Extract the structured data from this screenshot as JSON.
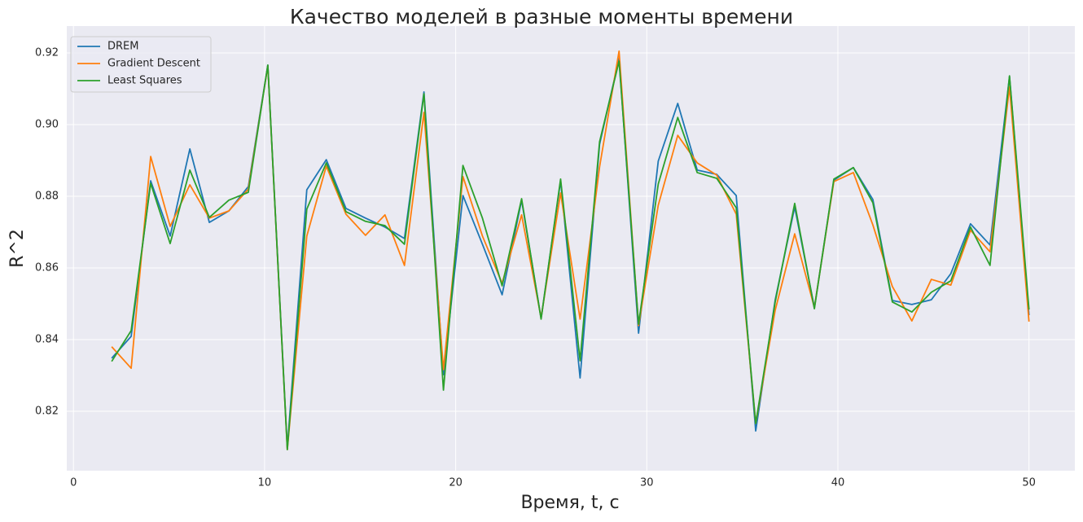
{
  "chart_data": {
    "type": "line",
    "title": "Качество моделей в разные моменты времени",
    "xlabel": "Время, t, c",
    "ylabel": "R^2",
    "legend": "upper left",
    "grid": true,
    "x": [
      2.0,
      3.02,
      4.04,
      5.06,
      6.09,
      7.11,
      8.13,
      9.15,
      10.17,
      11.19,
      12.21,
      13.23,
      14.26,
      15.28,
      16.3,
      17.32,
      18.34,
      19.36,
      20.38,
      21.4,
      22.43,
      23.45,
      24.47,
      25.49,
      26.51,
      27.53,
      28.55,
      29.57,
      30.6,
      31.62,
      32.64,
      33.66,
      34.68,
      35.7,
      36.72,
      37.74,
      38.77,
      39.79,
      40.81,
      41.83,
      42.85,
      43.87,
      44.89,
      45.91,
      46.94,
      47.96,
      48.98,
      50.0
    ],
    "series": [
      {
        "name": "DREM",
        "color": "#1f77b4",
        "values": [
          0.8348,
          0.8409,
          0.8843,
          0.8689,
          0.8932,
          0.8727,
          0.8759,
          0.8827,
          0.9166,
          0.8098,
          0.8818,
          0.8902,
          0.8766,
          0.8739,
          0.8714,
          0.8682,
          0.9091,
          0.8302,
          0.8802,
          0.8666,
          0.8525,
          0.8789,
          0.8459,
          0.8843,
          0.8293,
          0.8945,
          0.9184,
          0.8418,
          0.8898,
          0.9059,
          0.8873,
          0.8861,
          0.8802,
          0.8145,
          0.8511,
          0.877,
          0.8489,
          0.8845,
          0.888,
          0.8791,
          0.8509,
          0.8498,
          0.8511,
          0.8584,
          0.8723,
          0.8664,
          0.9134,
          0.8468
        ]
      },
      {
        "name": "Gradient Descent",
        "color": "#ff7f0e",
        "values": [
          0.838,
          0.832,
          0.8911,
          0.8716,
          0.8832,
          0.8739,
          0.8759,
          0.882,
          0.9164,
          0.8093,
          0.8689,
          0.8884,
          0.875,
          0.8691,
          0.8748,
          0.8607,
          0.9034,
          0.8316,
          0.8855,
          0.8689,
          0.8557,
          0.8748,
          0.8461,
          0.8809,
          0.8457,
          0.8882,
          0.9205,
          0.8439,
          0.8775,
          0.897,
          0.8893,
          0.8859,
          0.875,
          0.8166,
          0.8482,
          0.8695,
          0.8489,
          0.8841,
          0.8866,
          0.872,
          0.8548,
          0.8452,
          0.8568,
          0.8552,
          0.8705,
          0.8645,
          0.9105,
          0.845
        ]
      },
      {
        "name": "Least Squares",
        "color": "#2ca02c",
        "values": [
          0.8339,
          0.8425,
          0.8836,
          0.8668,
          0.8873,
          0.8741,
          0.8789,
          0.8811,
          0.9166,
          0.8093,
          0.8764,
          0.8893,
          0.8757,
          0.873,
          0.8718,
          0.8666,
          0.9086,
          0.8259,
          0.8886,
          0.8739,
          0.855,
          0.8793,
          0.8457,
          0.8848,
          0.8341,
          0.8952,
          0.9177,
          0.8443,
          0.8834,
          0.902,
          0.8866,
          0.885,
          0.8768,
          0.8166,
          0.8505,
          0.878,
          0.8486,
          0.8848,
          0.888,
          0.8782,
          0.8505,
          0.8477,
          0.8532,
          0.8564,
          0.8714,
          0.8607,
          0.9136,
          0.8484
        ]
      }
    ],
    "xlim": [
      -0.35,
      52.4
    ],
    "xticks": [
      0,
      10,
      20,
      30,
      40,
      50
    ],
    "ylim": [
      0.8034,
      0.9275
    ],
    "yticks": [
      0.82,
      0.84,
      0.86,
      0.88,
      {
        "value": 0.9,
        "label": "0.90"
      },
      0.92
    ]
  }
}
